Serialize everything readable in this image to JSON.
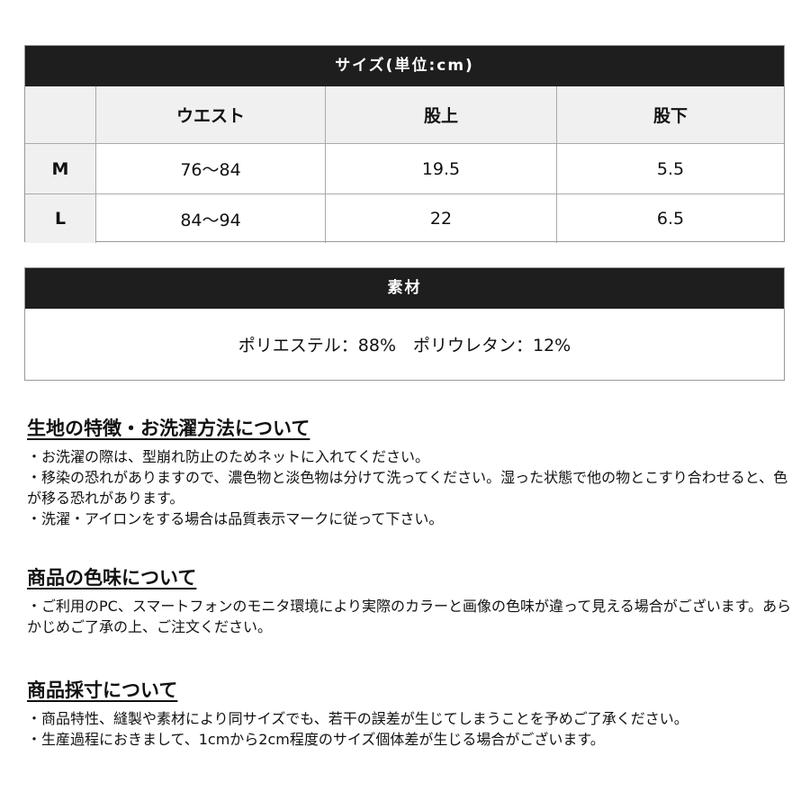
{
  "size_table": {
    "title": "サイズ(単位:cm)",
    "columns": [
      "",
      "ウエスト",
      "股上",
      "股下"
    ],
    "rows": [
      [
        "M",
        "76〜84",
        "19.5",
        "5.5"
      ],
      [
        "L",
        "84〜94",
        "22",
        "6.5"
      ]
    ]
  },
  "material": {
    "title": "素材",
    "text": "ポリエステル：88%　ポリウレタン：12%"
  },
  "sections": [
    {
      "heading": "生地の特徴・お洗濯方法について",
      "lines": [
        "・お洗濯の際は、型崩れ防止のためネットに入れてください。",
        "・移染の恐れがありますので、濃色物と淡色物は分けて洗ってください。湿った状態で他の物とこすり合わせると、色が移る恐れがあります。",
        "・洗濯・アイロンをする場合は品質表示マークに従って下さい。"
      ]
    },
    {
      "heading": "商品の色味について",
      "lines": [
        "・ご利用のPC、スマートフォンのモニタ環境により実際のカラーと画像の色味が違って見える場合がございます。あらかじめご了承の上、ご注文ください。"
      ]
    },
    {
      "heading": "商品採寸について",
      "lines": [
        "・商品特性、縫製や素材により同サイズでも、若干の誤差が生じてしまうことを予めご了承ください。",
        "・生産過程におきまして、1cmから2cm程度のサイズ個体差が生じる場合がございます。"
      ]
    }
  ]
}
